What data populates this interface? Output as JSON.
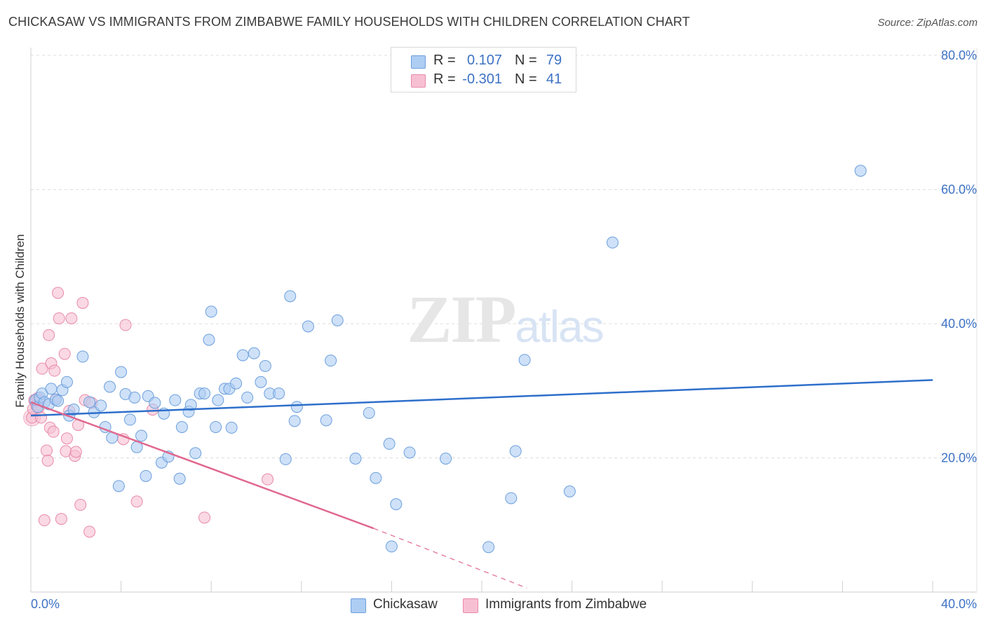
{
  "header": {
    "title": "CHICKASAW VS IMMIGRANTS FROM ZIMBABWE FAMILY HOUSEHOLDS WITH CHILDREN CORRELATION CHART",
    "source": "Source: ZipAtlas.com"
  },
  "watermark": "ZIPatlas",
  "legend": {
    "series": [
      {
        "r_label": "R =",
        "r_value": "0.107",
        "n_label": "N =",
        "n_value": "79"
      },
      {
        "r_label": "R =",
        "r_value": "-0.301",
        "n_label": "N =",
        "n_value": "41"
      }
    ]
  },
  "bottom_legend": [
    "Chickasaw",
    "Immigrants from Zimbabwe"
  ],
  "colors": {
    "blue_fill": "#aecdf3",
    "blue_stroke": "#6d9fdc",
    "blue_line": "#2e6fcb",
    "pink_fill": "#f7c0d2",
    "pink_stroke": "#e88aa9",
    "pink_line": "#e0688f",
    "grid": "#dddddd",
    "tick_text": "#3d72c4"
  },
  "chart_data": {
    "type": "scatter",
    "title": "CHICKASAW VS IMMIGRANTS FROM ZIMBABWE FAMILY HOUSEHOLDS WITH CHILDREN CORRELATION CHART",
    "xlabel": "",
    "ylabel": "Family Households with Children",
    "xlim": [
      0,
      40
    ],
    "ylim": [
      0,
      80
    ],
    "x_tick_labels": [
      "0.0%",
      "40.0%"
    ],
    "y_ticks": [
      20,
      40,
      60,
      80
    ],
    "y_tick_labels": [
      "20.0%",
      "40.0%",
      "60.0%",
      "80.0%"
    ],
    "series": [
      {
        "name": "Chickasaw",
        "color": "#6d9fdc",
        "trend": {
          "x0": 0,
          "y0": 26.3,
          "x1": 40,
          "y1": 31.6
        },
        "points": [
          [
            0.2,
            28.6
          ],
          [
            0.3,
            27.6
          ],
          [
            0.4,
            29.0
          ],
          [
            0.5,
            29.6
          ],
          [
            0.6,
            28.3
          ],
          [
            0.8,
            28.0
          ],
          [
            0.9,
            30.3
          ],
          [
            1.1,
            28.7
          ],
          [
            1.2,
            28.5
          ],
          [
            1.4,
            30.1
          ],
          [
            1.6,
            31.3
          ],
          [
            1.7,
            26.3
          ],
          [
            1.9,
            27.2
          ],
          [
            2.3,
            35.1
          ],
          [
            2.6,
            28.3
          ],
          [
            2.8,
            26.8
          ],
          [
            3.1,
            27.8
          ],
          [
            3.3,
            24.6
          ],
          [
            3.5,
            30.6
          ],
          [
            3.6,
            23.0
          ],
          [
            3.9,
            15.8
          ],
          [
            4.0,
            32.8
          ],
          [
            4.2,
            29.5
          ],
          [
            4.4,
            25.7
          ],
          [
            4.6,
            29.0
          ],
          [
            4.7,
            21.6
          ],
          [
            4.9,
            23.3
          ],
          [
            5.1,
            17.3
          ],
          [
            5.2,
            29.2
          ],
          [
            5.5,
            28.2
          ],
          [
            5.8,
            19.3
          ],
          [
            5.9,
            26.6
          ],
          [
            6.1,
            20.2
          ],
          [
            6.4,
            28.6
          ],
          [
            6.6,
            16.9
          ],
          [
            6.7,
            24.6
          ],
          [
            7.0,
            26.9
          ],
          [
            7.1,
            27.9
          ],
          [
            7.3,
            20.7
          ],
          [
            7.5,
            29.6
          ],
          [
            7.7,
            29.6
          ],
          [
            7.9,
            37.6
          ],
          [
            8.0,
            41.8
          ],
          [
            8.2,
            24.6
          ],
          [
            8.3,
            28.6
          ],
          [
            8.6,
            30.3
          ],
          [
            8.8,
            30.3
          ],
          [
            8.9,
            24.5
          ],
          [
            9.1,
            31.1
          ],
          [
            9.4,
            35.3
          ],
          [
            9.6,
            29.0
          ],
          [
            9.9,
            35.6
          ],
          [
            10.2,
            31.3
          ],
          [
            10.4,
            33.7
          ],
          [
            10.6,
            29.6
          ],
          [
            11.0,
            29.6
          ],
          [
            11.3,
            19.8
          ],
          [
            11.5,
            44.1
          ],
          [
            11.7,
            25.5
          ],
          [
            11.8,
            27.6
          ],
          [
            12.3,
            39.6
          ],
          [
            13.1,
            25.6
          ],
          [
            13.3,
            34.5
          ],
          [
            13.6,
            40.5
          ],
          [
            14.4,
            19.9
          ],
          [
            15.0,
            26.7
          ],
          [
            15.3,
            17.0
          ],
          [
            15.9,
            22.1
          ],
          [
            16.2,
            13.1
          ],
          [
            16.0,
            6.8
          ],
          [
            16.8,
            20.8
          ],
          [
            18.4,
            19.9
          ],
          [
            20.3,
            6.7
          ],
          [
            21.3,
            14.0
          ],
          [
            21.5,
            21.0
          ],
          [
            21.9,
            34.6
          ],
          [
            23.9,
            15.0
          ],
          [
            25.8,
            52.1
          ],
          [
            36.8,
            62.8
          ]
        ]
      },
      {
        "name": "Immigrants from Zimbabwe",
        "color": "#e88aa9",
        "trend": {
          "x0": 0,
          "y0": 28.3,
          "x1": 15.2,
          "y1": 9.5,
          "dash_x1": 22,
          "dash_y1": 0.6
        },
        "points": [
          [
            0.05,
            26.0
          ],
          [
            0.1,
            27.3
          ],
          [
            0.15,
            28.6
          ],
          [
            0.2,
            28.3
          ],
          [
            0.25,
            27.8
          ],
          [
            0.3,
            28.9
          ],
          [
            0.35,
            27.5
          ],
          [
            0.4,
            28.6
          ],
          [
            0.45,
            26.0
          ],
          [
            0.5,
            33.3
          ],
          [
            0.6,
            10.7
          ],
          [
            0.7,
            21.1
          ],
          [
            0.75,
            19.6
          ],
          [
            0.8,
            38.3
          ],
          [
            0.85,
            24.5
          ],
          [
            0.9,
            34.1
          ],
          [
            1.0,
            23.9
          ],
          [
            1.05,
            33.0
          ],
          [
            1.1,
            28.7
          ],
          [
            1.2,
            44.6
          ],
          [
            1.25,
            40.8
          ],
          [
            1.35,
            10.9
          ],
          [
            1.5,
            35.5
          ],
          [
            1.55,
            21.0
          ],
          [
            1.6,
            22.9
          ],
          [
            1.7,
            27.0
          ],
          [
            1.8,
            40.8
          ],
          [
            1.95,
            20.3
          ],
          [
            2.0,
            20.9
          ],
          [
            2.1,
            24.9
          ],
          [
            2.2,
            13.0
          ],
          [
            2.3,
            43.1
          ],
          [
            2.4,
            28.6
          ],
          [
            2.6,
            9.0
          ],
          [
            2.7,
            28.2
          ],
          [
            4.1,
            22.8
          ],
          [
            4.2,
            39.8
          ],
          [
            4.7,
            13.5
          ],
          [
            5.4,
            27.2
          ],
          [
            7.7,
            11.1
          ],
          [
            10.5,
            16.8
          ]
        ]
      }
    ]
  }
}
